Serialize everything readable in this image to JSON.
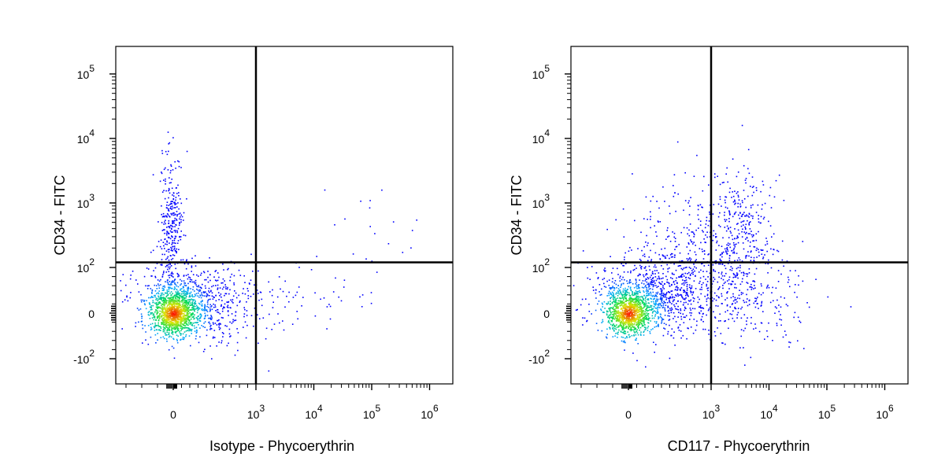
{
  "chart_data": [
    {
      "type": "scatter",
      "plot_style": "pseudocolor density dot plot",
      "xlabel": "Isotype - Phycoerythrin",
      "ylabel": "CD34 - FITC",
      "x_scale": "biexponential",
      "y_scale": "biexponential",
      "xlim": [
        -300,
        1000000
      ],
      "ylim": [
        -1000,
        300000
      ],
      "x_ticks": [
        {
          "value": 0,
          "label": "0",
          "exp": ""
        },
        {
          "value": 1000,
          "label": "10",
          "exp": "3"
        },
        {
          "value": 10000,
          "label": "10",
          "exp": "4"
        },
        {
          "value": 100000,
          "label": "10",
          "exp": "5"
        },
        {
          "value": 1000000,
          "label": "10",
          "exp": "6"
        }
      ],
      "y_ticks": [
        {
          "value": -100,
          "label": "-10",
          "exp": "2"
        },
        {
          "value": 0,
          "label": "0",
          "exp": ""
        },
        {
          "value": 100,
          "label": "10",
          "exp": "2"
        },
        {
          "value": 1000,
          "label": "10",
          "exp": "3"
        },
        {
          "value": 10000,
          "label": "10",
          "exp": "4"
        },
        {
          "value": 100000,
          "label": "10",
          "exp": "5"
        }
      ],
      "quadrant_gate": {
        "x": 1000,
        "y": 120
      },
      "populations": [
        {
          "center_x": 0,
          "center_y": 0,
          "spread": "dense core",
          "description": "double-negative main population"
        },
        {
          "center_x": 30,
          "center_y": 800,
          "spread": "vertical streak",
          "description": "CD34+ isotype-negative"
        }
      ],
      "grid": false,
      "legend": "none",
      "colors": {
        "density_low": "#0000ff",
        "density_mid": "#00ff00",
        "density_high": "#ff0000",
        "gate_line": "#000000"
      }
    },
    {
      "type": "scatter",
      "plot_style": "pseudocolor density dot plot",
      "xlabel": "CD117 - Phycoerythrin",
      "ylabel": "CD34 - FITC",
      "x_scale": "biexponential",
      "y_scale": "biexponential",
      "xlim": [
        -300,
        1000000
      ],
      "ylim": [
        -1000,
        300000
      ],
      "x_ticks": [
        {
          "value": 0,
          "label": "0",
          "exp": ""
        },
        {
          "value": 1000,
          "label": "10",
          "exp": "3"
        },
        {
          "value": 10000,
          "label": "10",
          "exp": "4"
        },
        {
          "value": 100000,
          "label": "10",
          "exp": "5"
        },
        {
          "value": 1000000,
          "label": "10",
          "exp": "6"
        }
      ],
      "y_ticks": [
        {
          "value": -100,
          "label": "-10",
          "exp": "2"
        },
        {
          "value": 0,
          "label": "0",
          "exp": ""
        },
        {
          "value": 100,
          "label": "10",
          "exp": "2"
        },
        {
          "value": 1000,
          "label": "10",
          "exp": "3"
        },
        {
          "value": 10000,
          "label": "10",
          "exp": "4"
        },
        {
          "value": 100000,
          "label": "10",
          "exp": "5"
        }
      ],
      "quadrant_gate": {
        "x": 1000,
        "y": 120
      },
      "populations": [
        {
          "center_x": 0,
          "center_y": 0,
          "spread": "dense core",
          "description": "double-negative main population"
        },
        {
          "center_x": 3000,
          "center_y": 400,
          "spread": "broad cloud",
          "description": "CD34+ CD117+ population"
        }
      ],
      "grid": false,
      "legend": "none",
      "colors": {
        "density_low": "#0000ff",
        "density_mid": "#00ff00",
        "density_high": "#ff0000",
        "gate_line": "#000000"
      }
    }
  ]
}
